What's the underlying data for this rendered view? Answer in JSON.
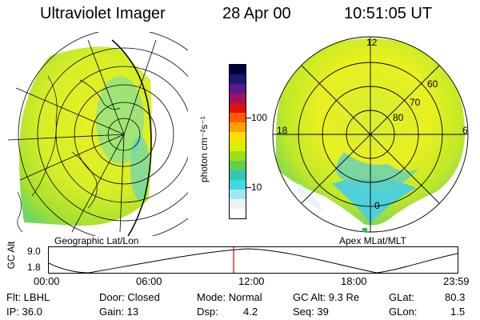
{
  "header": {
    "instrument": "Ultraviolet Imager",
    "date": "28 Apr 00",
    "time": "10:51:05 UT"
  },
  "colorbar": {
    "unit_label": "photon cm⁻²s⁻¹",
    "ticks": [
      "100",
      "10"
    ],
    "colors": [
      "#000040",
      "#1a1a6e",
      "#5a1a8a",
      "#a01060",
      "#e01010",
      "#ff5a00",
      "#ffa000",
      "#ffe000",
      "#d8f000",
      "#9ae018",
      "#60d050",
      "#30c8b0",
      "#40d8e0",
      "#a0e8f0",
      "#e8f4f8",
      "#ffffff"
    ]
  },
  "geo_map": {
    "label": "Geographic Lat/Lon"
  },
  "polar_map": {
    "label": "Apex MLat/MLT",
    "mlt_labels": [
      "12",
      "18",
      "6",
      "0"
    ],
    "lat_labels": [
      "60",
      "70",
      "80"
    ]
  },
  "timeline": {
    "y_label": "GC Alt",
    "y_ticks": [
      "9.0",
      "1.8"
    ],
    "x_ticks": [
      "00:00",
      "06:00",
      "12:00",
      "18:00",
      "23:59"
    ],
    "current_time_fraction": 0.4521
  },
  "status": {
    "row1": {
      "filter": "Flt: LBHL",
      "door": "Door: Closed",
      "mode": "Mode: Normal",
      "gc_alt": "GC Alt: 9.3 Re",
      "glat_label": "GLat:",
      "glat_value": "80.3"
    },
    "row2": {
      "ip": "IP: 36.0",
      "gain": "Gain: 13",
      "dsp_label": "Dsp:",
      "dsp_value": "4.2",
      "seq": "Seq: 39",
      "glon_label": "GLon:",
      "glon_value": "1.5"
    }
  },
  "colors": {
    "aurora_yellow": "#e8f020",
    "aurora_green": "#a0e030",
    "aurora_cyan": "#50d0d8",
    "marker_red": "#e00000"
  }
}
